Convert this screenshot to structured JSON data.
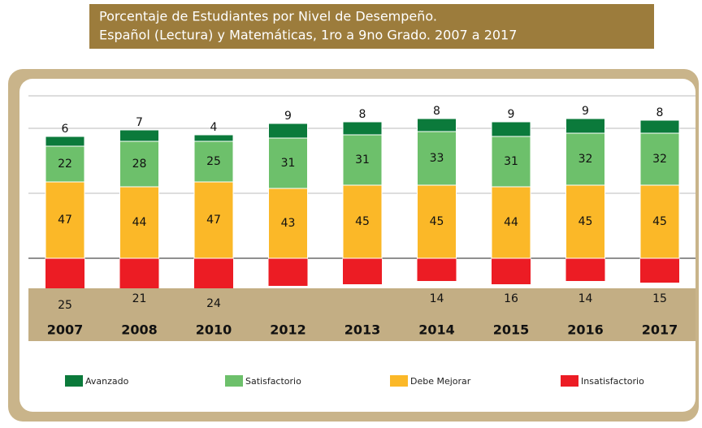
{
  "chart_data": {
    "type": "bar",
    "title": [
      "Porcentaje de Estudiantes por Nivel de Desempeño.",
      "Español (Lectura) y Matemáticas, 1ro a 9no Grado. 2007 a 2017"
    ],
    "categories": [
      "2007",
      "2008",
      "2010",
      "2012",
      "2013",
      "2014",
      "2015",
      "2016",
      "2017"
    ],
    "series": [
      {
        "name": "Avanzado",
        "color": "#0b7a3b",
        "values": [
          6,
          7,
          4,
          9,
          8,
          8,
          9,
          9,
          8
        ]
      },
      {
        "name": "Satisfactorio",
        "color": "#6dc06b",
        "values": [
          22,
          28,
          25,
          31,
          31,
          33,
          31,
          32,
          32
        ]
      },
      {
        "name": "Debe Mejorar",
        "color": "#fbb828",
        "values": [
          47,
          44,
          47,
          43,
          45,
          45,
          44,
          45,
          45
        ]
      },
      {
        "name": "Insatisfactorio",
        "color": "#ec1c24",
        "below_axis": true,
        "values": [
          25,
          21,
          24,
          17,
          16,
          14,
          16,
          14,
          15
        ],
        "value_labels": [
          "25",
          "21",
          "24",
          null,
          null,
          "14",
          "16",
          "14",
          "15"
        ]
      }
    ],
    "stacked": true,
    "ylim": [
      -25,
      100
    ],
    "yticks": [
      0,
      40,
      80,
      100
    ],
    "grid": true,
    "legend": "bottom"
  }
}
